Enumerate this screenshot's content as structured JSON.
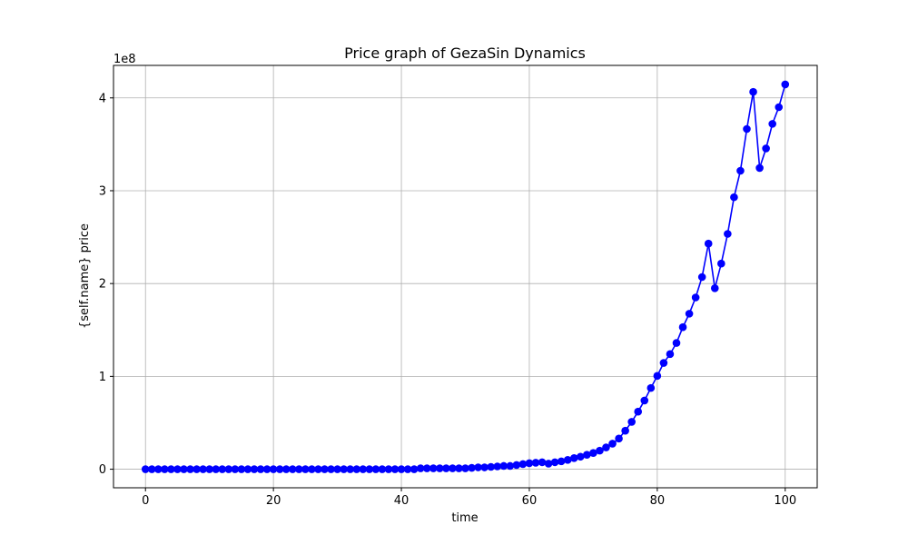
{
  "chart_data": {
    "type": "line",
    "title": "Price graph of GezaSin Dynamics",
    "xlabel": "time",
    "ylabel": "{self.name} price",
    "y_offset_label": "1e8",
    "xlim": [
      -5,
      105
    ],
    "ylim": [
      -0.2,
      4.35
    ],
    "x_ticks": [
      0,
      20,
      40,
      60,
      80,
      100
    ],
    "y_ticks": [
      0,
      1,
      2,
      3,
      4
    ],
    "grid": true,
    "legend": "none",
    "series": [
      {
        "color": "#0000ff",
        "marker": "circle",
        "x": [
          0,
          1,
          2,
          3,
          4,
          5,
          6,
          7,
          8,
          9,
          10,
          11,
          12,
          13,
          14,
          15,
          16,
          17,
          18,
          19,
          20,
          21,
          22,
          23,
          24,
          25,
          26,
          27,
          28,
          29,
          30,
          31,
          32,
          33,
          34,
          35,
          36,
          37,
          38,
          39,
          40,
          41,
          42,
          43,
          44,
          45,
          46,
          47,
          48,
          49,
          50,
          51,
          52,
          53,
          54,
          55,
          56,
          57,
          58,
          59,
          60,
          61,
          62,
          63,
          64,
          65,
          66,
          67,
          68,
          69,
          70,
          71,
          72,
          73,
          74,
          75,
          76,
          77,
          78,
          79,
          80,
          81,
          82,
          83,
          84,
          85,
          86,
          87,
          88,
          89,
          90,
          91,
          92,
          93,
          94,
          95,
          96,
          97,
          98,
          99,
          100
        ],
        "values": [
          0,
          0,
          0,
          0,
          0,
          0,
          0,
          0,
          0,
          0,
          0,
          0,
          0,
          0,
          0,
          0,
          0,
          0,
          0,
          0,
          0,
          0,
          0,
          0,
          0,
          0,
          0,
          0,
          0,
          0,
          0,
          0,
          0,
          0,
          0,
          0,
          0,
          0,
          0,
          0,
          0,
          0,
          0,
          0.01,
          0.01,
          0.01,
          0.01,
          0.01,
          0.01,
          0.01,
          0.01,
          0.015,
          0.02,
          0.02,
          0.025,
          0.03,
          0.035,
          0.035,
          0.045,
          0.055,
          0.065,
          0.07,
          0.075,
          0.06,
          0.075,
          0.085,
          0.1,
          0.12,
          0.135,
          0.155,
          0.175,
          0.2,
          0.235,
          0.275,
          0.33,
          0.415,
          0.51,
          0.62,
          0.74,
          0.875,
          1.005,
          1.145,
          1.24,
          1.36,
          1.53,
          1.675,
          1.85,
          2.07,
          2.43,
          1.95,
          2.215,
          2.535,
          2.93,
          3.215,
          3.665,
          4.065,
          3.245,
          3.455,
          3.72,
          3.9,
          4.145
        ]
      }
    ]
  }
}
